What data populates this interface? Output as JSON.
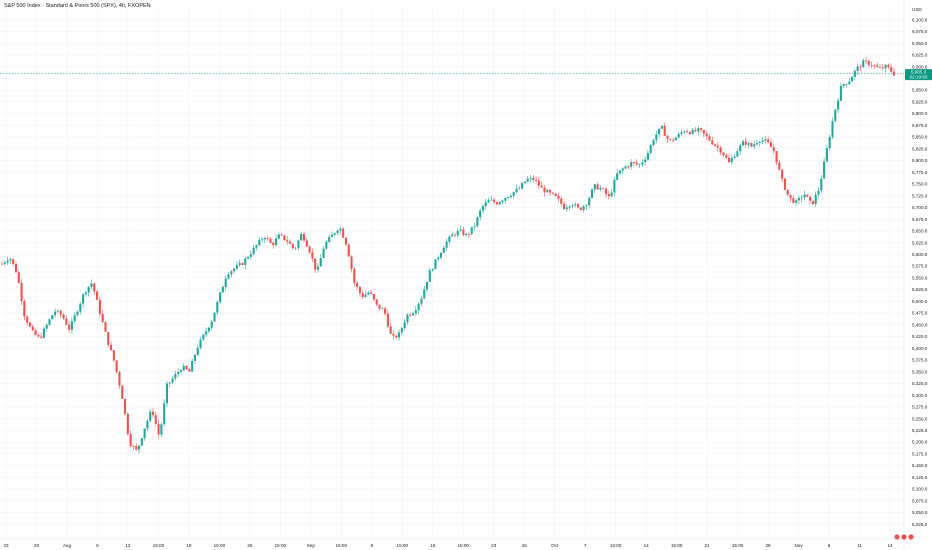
{
  "header": {
    "title": "S&P 500 Index · Standard & Poors 500 (SPX), 4h, FXOPEN"
  },
  "colors": {
    "up": "#26a69a",
    "down": "#ef5350",
    "grid": "#f0f3fa",
    "price_line": "#22ab94",
    "axis_text": "#131722",
    "price_tag_bg": "#089981"
  },
  "chart_data": {
    "type": "candlestick",
    "title": "S&P 500 Index · Standard & Poors 500 (SPX), 4h, FXOPEN",
    "currency": "USD",
    "ylim": [
      5000,
      6125
    ],
    "y_ticks": [
      6100,
      6075,
      6050,
      6025,
      6000,
      5975,
      5950,
      5925,
      5900,
      5875,
      5850,
      5825,
      5800,
      5775,
      5750,
      5725,
      5700,
      5675,
      5650,
      5625,
      5600,
      5575,
      5550,
      5525,
      5500,
      5475,
      5450,
      5425,
      5400,
      5375,
      5350,
      5325,
      5300,
      5275,
      5250,
      5225,
      5200,
      5175,
      5150,
      5125,
      5100,
      5075,
      5050,
      5025
    ],
    "y_tick_labels": [
      "6,100.0",
      "6,075.0",
      "6,050.0",
      "6,025.0",
      "6,000.0",
      "5,975.0",
      "5,950.0",
      "5,925.0",
      "5,900.0",
      "5,875.0",
      "5,850.0",
      "5,825.0",
      "5,800.0",
      "5,775.0",
      "5,750.0",
      "5,725.0",
      "5,700.0",
      "5,675.0",
      "5,650.0",
      "5,625.0",
      "5,600.0",
      "5,575.0",
      "5,550.0",
      "5,525.0",
      "5,500.0",
      "5,475.0",
      "5,450.0",
      "5,425.0",
      "5,400.0",
      "5,375.0",
      "5,350.0",
      "5,325.0",
      "5,300.0",
      "5,275.0",
      "5,250.0",
      "5,225.0",
      "5,200.0",
      "5,175.0",
      "5,150.0",
      "5,125.0",
      "5,100.0",
      "5,075.0",
      "5,050.0",
      "5,025.0"
    ],
    "x_tick_labels": [
      "23",
      "29",
      "Aug",
      "6",
      "12",
      "15:00",
      "19",
      "15:00",
      "26",
      "15:00",
      "Sep",
      "15:00",
      "9",
      "15:00",
      "16",
      "15:00",
      "23",
      "26",
      "Oct",
      "7",
      "15:00",
      "14",
      "15:00",
      "21",
      "15:00",
      "28",
      "Nov",
      "6",
      "11",
      "14"
    ],
    "last_price": 5985.3,
    "last_price_label": "5,985.3",
    "countdown": "02:19:50",
    "price_anchors": [
      5580,
      5595,
      5560,
      5470,
      5435,
      5420,
      5450,
      5480,
      5470,
      5440,
      5480,
      5520,
      5540,
      5480,
      5420,
      5370,
      5300,
      5200,
      5180,
      5230,
      5270,
      5210,
      5320,
      5340,
      5360,
      5350,
      5400,
      5430,
      5460,
      5510,
      5560,
      5570,
      5580,
      5600,
      5620,
      5640,
      5620,
      5640,
      5630,
      5610,
      5645,
      5610,
      5560,
      5620,
      5640,
      5660,
      5620,
      5540,
      5510,
      5520,
      5490,
      5480,
      5420,
      5430,
      5470,
      5480,
      5510,
      5560,
      5590,
      5620,
      5640,
      5650,
      5640,
      5660,
      5700,
      5715,
      5710,
      5720,
      5730,
      5740,
      5760,
      5760,
      5740,
      5730,
      5720,
      5700,
      5710,
      5695,
      5710,
      5745,
      5740,
      5720,
      5770,
      5785,
      5795,
      5790,
      5810,
      5850,
      5870,
      5840,
      5850,
      5865,
      5860,
      5865,
      5850,
      5835,
      5820,
      5795,
      5820,
      5840,
      5830,
      5845,
      5840,
      5820,
      5760,
      5720,
      5710,
      5730,
      5705,
      5740,
      5820,
      5900,
      5960,
      5970,
      5995,
      6010,
      6005,
      5995,
      6000,
      5985
    ]
  }
}
